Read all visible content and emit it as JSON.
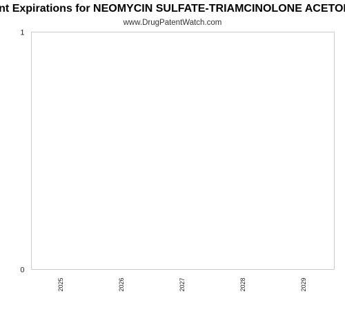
{
  "chart_data": {
    "type": "bar",
    "title": "Patent Expirations for NEOMYCIN SULFATE-TRIAMCINOLONE ACETONIDE",
    "subtitle": "www.DrugPatentWatch.com",
    "categories": [
      "2025",
      "2026",
      "2027",
      "2028",
      "2029"
    ],
    "values": [
      0,
      0,
      0,
      0,
      0
    ],
    "ylim": [
      0,
      1
    ],
    "yticks": [
      "0",
      "1"
    ],
    "xlabel": "",
    "ylabel": "",
    "grid": false,
    "colors": {
      "plot_border": "#cccccc",
      "axis_text": "#222222",
      "bar": "#5b9bd5"
    }
  }
}
